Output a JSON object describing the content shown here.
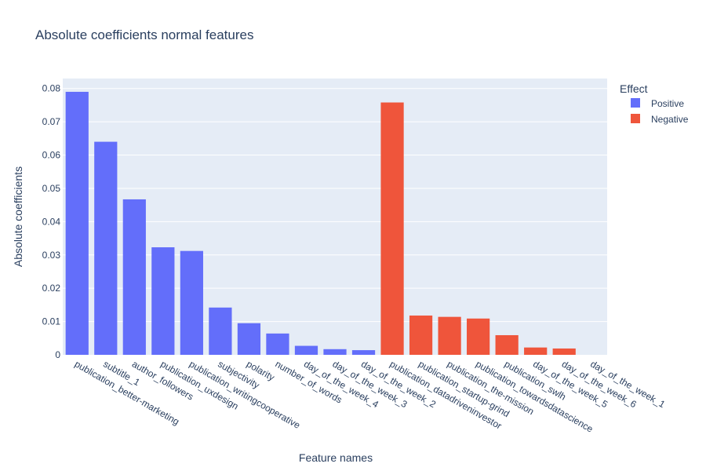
{
  "chart_data": {
    "type": "bar",
    "title": "Absolute coefficients normal features",
    "xlabel": "Feature names",
    "ylabel": "Absolute coefficients",
    "ylim": [
      0,
      0.083
    ],
    "yticks": [
      {
        "value": 0,
        "label": "0"
      },
      {
        "value": 0.01,
        "label": "0.01"
      },
      {
        "value": 0.02,
        "label": "0.02"
      },
      {
        "value": 0.03,
        "label": "0.03"
      },
      {
        "value": 0.04,
        "label": "0.04"
      },
      {
        "value": 0.05,
        "label": "0.05"
      },
      {
        "value": 0.06,
        "label": "0.06"
      },
      {
        "value": 0.07,
        "label": "0.07"
      },
      {
        "value": 0.08,
        "label": "0.08"
      }
    ],
    "grid": true,
    "legend_title": "Effect",
    "legend_position": "top-right",
    "series": [
      {
        "name": "Positive",
        "color": "#636efa"
      },
      {
        "name": "Negative",
        "color": "#ef553b"
      }
    ],
    "bars": [
      {
        "category": "publication_better-marketing",
        "value": 0.079,
        "series": "Positive"
      },
      {
        "category": "subtitle_1",
        "value": 0.064,
        "series": "Positive"
      },
      {
        "category": "author_followers",
        "value": 0.0467,
        "series": "Positive"
      },
      {
        "category": "publication_uxdesign",
        "value": 0.0323,
        "series": "Positive"
      },
      {
        "category": "publication_writingcooperative",
        "value": 0.0312,
        "series": "Positive"
      },
      {
        "category": "subjectivity",
        "value": 0.0142,
        "series": "Positive"
      },
      {
        "category": "polarity",
        "value": 0.0095,
        "series": "Positive"
      },
      {
        "category": "number_of_words",
        "value": 0.0064,
        "series": "Positive"
      },
      {
        "category": "day_of_the_week_4",
        "value": 0.0027,
        "series": "Positive"
      },
      {
        "category": "day_of_the_week_3",
        "value": 0.0017,
        "series": "Positive"
      },
      {
        "category": "day_of_the_week_2",
        "value": 0.0014,
        "series": "Positive"
      },
      {
        "category": "publication_datadriveninvestor",
        "value": 0.0758,
        "series": "Negative"
      },
      {
        "category": "publication_startup-grind",
        "value": 0.0118,
        "series": "Negative"
      },
      {
        "category": "publication_the-mission",
        "value": 0.0114,
        "series": "Negative"
      },
      {
        "category": "publication_towardsdatascience",
        "value": 0.0109,
        "series": "Negative"
      },
      {
        "category": "publication_swlh",
        "value": 0.0059,
        "series": "Negative"
      },
      {
        "category": "day_of_the_week_5",
        "value": 0.0022,
        "series": "Negative"
      },
      {
        "category": "day_of_the_week_6",
        "value": 0.0019,
        "series": "Negative"
      },
      {
        "category": "day_of_the_week_1",
        "value": 0.0001,
        "series": "Negative"
      }
    ]
  }
}
